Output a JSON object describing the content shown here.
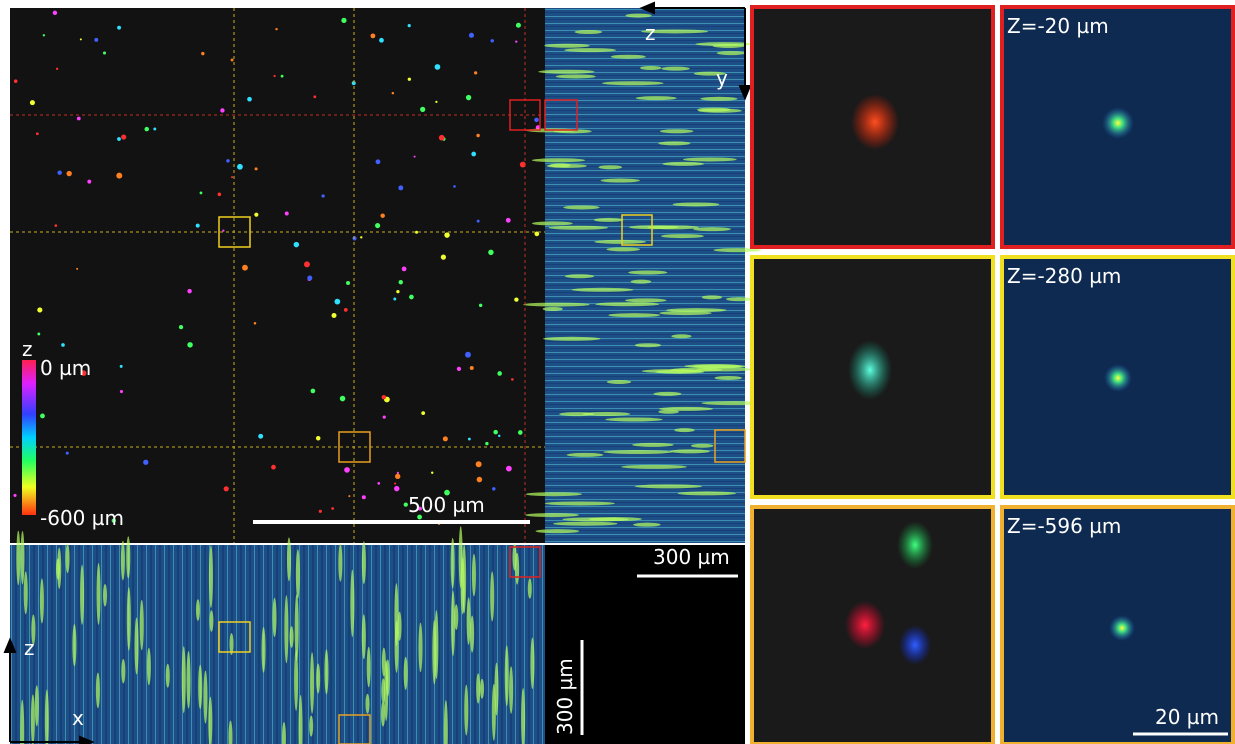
{
  "xy_panel": {
    "colorbar": {
      "label": "z",
      "top": "0 µm",
      "bottom": "-600 µm"
    },
    "scale_bar": "500 µm"
  },
  "yz_panel": {
    "axis_z": "z",
    "axis_y": "y",
    "scale_bar": "300 µm"
  },
  "xz_panel": {
    "axis_z": "z",
    "axis_x": "x",
    "scale_bar": "300 µm"
  },
  "insets": [
    {
      "label": "Z=-20 µm"
    },
    {
      "label": "Z=-280 µm"
    },
    {
      "label": "Z=-596 µm"
    }
  ],
  "inset_scale_bar": "20 µm"
}
